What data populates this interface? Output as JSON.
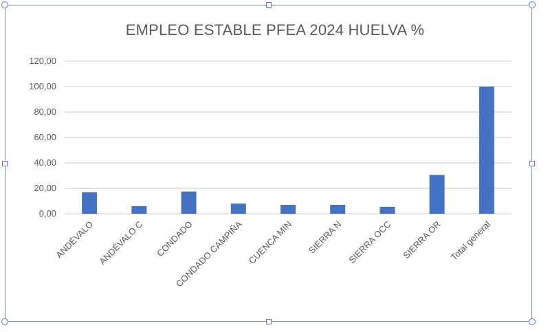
{
  "chart_data": {
    "type": "bar",
    "title": "EMPLEO ESTABLE PFEA 2024 HUELVA %",
    "xlabel": "",
    "ylabel": "",
    "categories": [
      "ANDÉVALO",
      "ANDÉVALO C",
      "CONDADO",
      "CONDADO CAMPIÑA",
      "CUENCA MIN",
      "SIERRA N",
      "SIERRA OCC",
      "SIERRA OR",
      "Total general"
    ],
    "values": [
      17,
      6,
      17.5,
      8,
      7,
      7,
      5.5,
      30.5,
      100
    ],
    "ylim": [
      0,
      120
    ],
    "yticks": [
      "0,00",
      "20,00",
      "40,00",
      "60,00",
      "80,00",
      "100,00",
      "120,00"
    ],
    "grid": true,
    "legend": "none",
    "bar_color": "#4472c4",
    "grid_color": "#d9d9d9",
    "text_color": "#595959"
  }
}
